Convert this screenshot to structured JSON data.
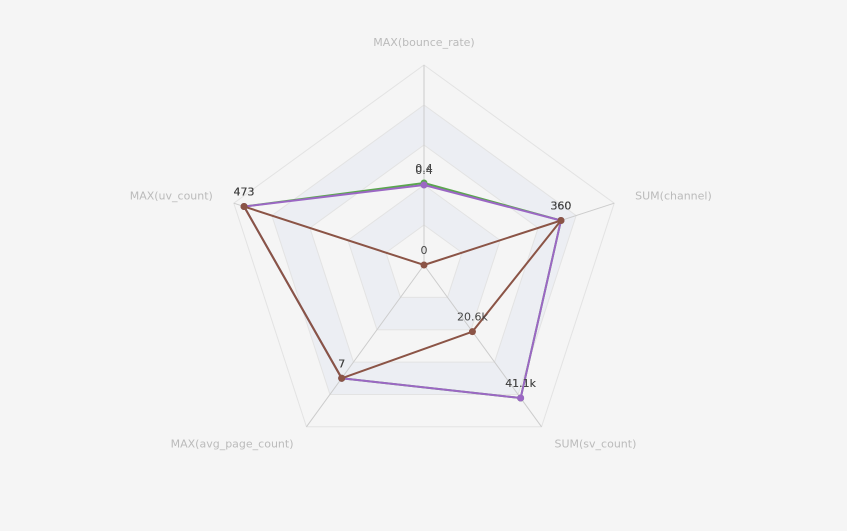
{
  "chart_data": {
    "type": "radar",
    "indicators": [
      {
        "name": "MAX(bounce_rate)",
        "max": 1
      },
      {
        "name": "SUM(channel)",
        "max": 500
      },
      {
        "name": "SUM(sv_count)",
        "max": 50000
      },
      {
        "name": "MAX(avg_page_count)",
        "max": 10
      },
      {
        "name": "MAX(uv_count)",
        "max": 500
      }
    ],
    "split_number": 5,
    "series": [
      {
        "color": "#5aa64e",
        "values": [
          0.41,
          360,
          41100,
          7,
          473
        ],
        "value_labels": [
          "0.4",
          "360",
          "41.1k",
          "7",
          "473"
        ]
      },
      {
        "color": "#9b67c4",
        "values": [
          0.4,
          360,
          41100,
          7,
          473
        ],
        "value_labels": [
          "0.4",
          "360",
          "41.1k",
          "7",
          "473"
        ]
      },
      {
        "color": "#8b5446",
        "values": [
          0,
          360,
          20600,
          7,
          473
        ],
        "value_labels": [
          "0",
          "360",
          "20.6k",
          "7",
          "473"
        ]
      }
    ]
  }
}
